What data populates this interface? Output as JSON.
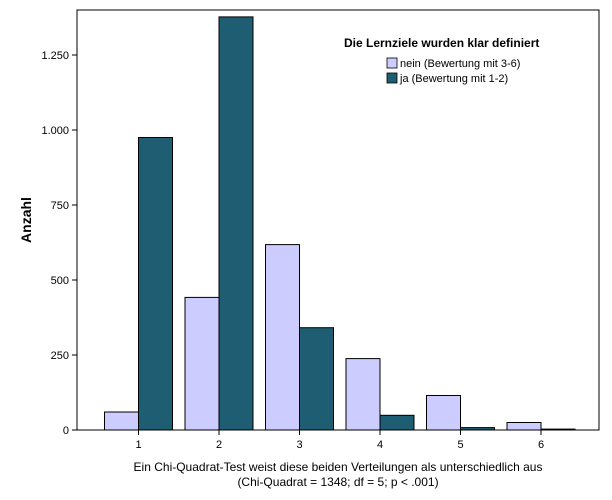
{
  "chart_data": {
    "type": "bar",
    "categories": [
      "1",
      "2",
      "3",
      "4",
      "5",
      "6"
    ],
    "series": [
      {
        "name": "nein (Bewertung mit 3-6)",
        "color": "#ccccff",
        "values": [
          60,
          442,
          618,
          238,
          115,
          25
        ]
      },
      {
        "name": "ja (Bewertung mit 1-2)",
        "color": "#1f5d73",
        "values": [
          975,
          1377,
          341,
          49,
          8,
          3
        ]
      }
    ],
    "title": "",
    "legend_title": "Die Lernziele wurden klar definiert",
    "ylabel": "Anzahl",
    "xlabel_lines": [
      "Ein Chi-Quadrat-Test weist diese beiden Verteilungen als unterschiedlich aus",
      "(Chi-Quadrat = 1348; df = 5; p < .001)"
    ],
    "yticks": [
      0,
      250,
      500,
      750,
      1000,
      1250
    ],
    "ytick_labels": [
      "0",
      "250",
      "500",
      "750",
      "1.000",
      "1.250"
    ],
    "ylim": [
      0,
      1400
    ],
    "grid": false,
    "legend_position": "top-right"
  }
}
